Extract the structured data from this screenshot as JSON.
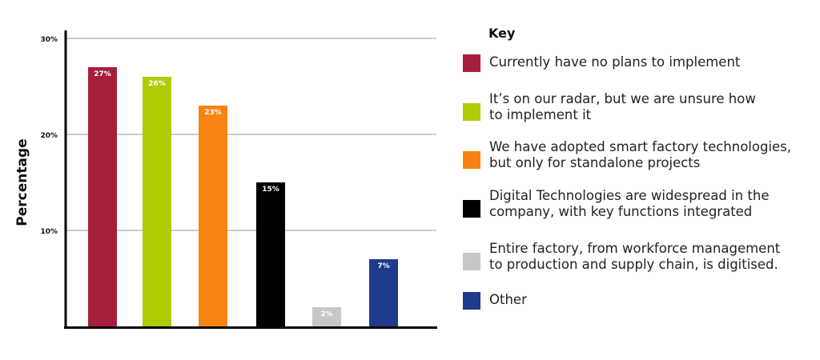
{
  "chart_data": {
    "type": "bar",
    "ylabel": "Percentage",
    "ylim": [
      0,
      30
    ],
    "yticks": [
      "10%",
      "20%",
      "30%"
    ],
    "grid": true,
    "legend_position": "right",
    "legend_title": "Key",
    "categories": [
      "Currently have no plans to implement",
      "It’s on our radar, but we are unsure how to implement it",
      "We have adopted smart factory technologies, but only for standalone projects",
      "Digital Technologies are widespread in the company, with key functions integrated",
      "Entire factory, from workforce management to production and supply chain, is digitised.",
      "Other"
    ],
    "values": [
      27,
      26,
      23,
      15,
      2,
      7
    ],
    "value_labels": [
      "27%",
      "26%",
      "23%",
      "15%",
      "2%",
      "7%"
    ],
    "colors": [
      "#a51f3a",
      "#afcb04",
      "#f78412",
      "#000000",
      "#c7c7c7",
      "#1e3b8e"
    ]
  },
  "legend": {
    "title": "Key",
    "items": [
      {
        "lines": [
          "Currently have no plans to implement"
        ],
        "color": "#a51f3a"
      },
      {
        "lines": [
          "It’s on our radar, but we are unsure how",
          "to implement it"
        ],
        "color": "#afcb04"
      },
      {
        "lines": [
          "We have adopted smart factory technologies,",
          "but only for standalone projects"
        ],
        "color": "#f78412"
      },
      {
        "lines": [
          "Digital Technologies are widespread in the",
          "company, with key functions integrated"
        ],
        "color": "#000000"
      },
      {
        "lines": [
          "Entire factory, from workforce management",
          "to production and supply chain, is digitised."
        ],
        "color": "#c7c7c7"
      },
      {
        "lines": [
          "Other"
        ],
        "color": "#1e3b8e"
      }
    ]
  }
}
